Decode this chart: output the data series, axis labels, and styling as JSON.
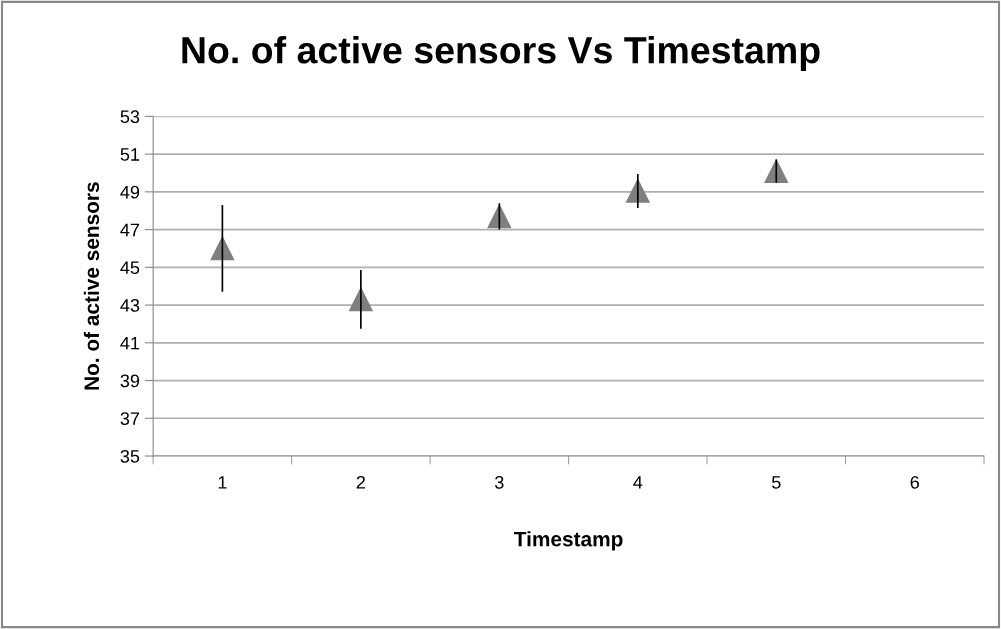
{
  "chart_data": {
    "type": "scatter",
    "title": "No. of active sensors Vs Timestamp",
    "xlabel": "Timestamp",
    "ylabel": "No. of active sensors",
    "categories": [
      "1",
      "2",
      "3",
      "4",
      "5",
      "6"
    ],
    "values": [
      46.0,
      43.3,
      47.7,
      49.05,
      50.1,
      null
    ],
    "errors": [
      2.3,
      1.56,
      0.7,
      0.9,
      0.62,
      null
    ],
    "color": "#7f7f7f",
    "marker": "triangle",
    "grid": "y",
    "ylim": [
      35,
      53
    ],
    "yticks": [
      35,
      37,
      39,
      41,
      43,
      45,
      47,
      49,
      51,
      53
    ]
  }
}
